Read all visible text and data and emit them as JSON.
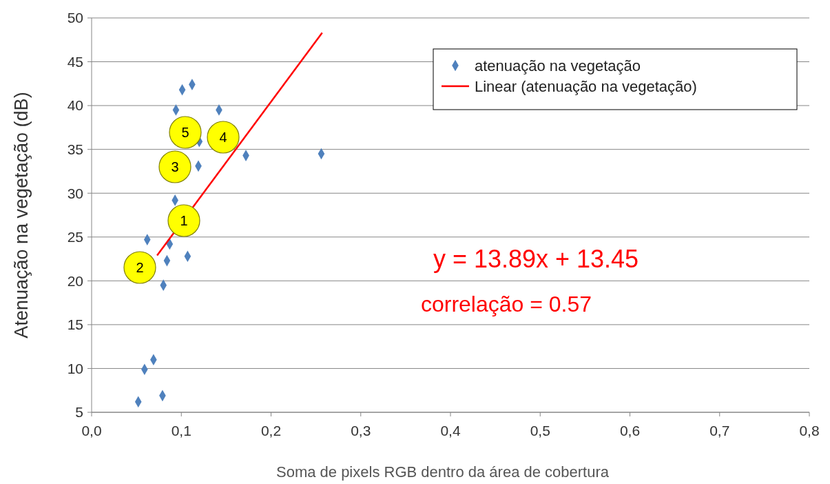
{
  "chart_data": {
    "type": "scatter",
    "xlabel": "Soma de pixels RGB dentro da área de cobertura",
    "ylabel": "Atenuação na vegetação (dB)",
    "xlim": [
      0,
      0.8
    ],
    "ylim": [
      5,
      50
    ],
    "xticks": [
      {
        "value": 0,
        "label": "0,0"
      },
      {
        "value": 0.1,
        "label": "0,1"
      },
      {
        "value": 0.2,
        "label": "0,2"
      },
      {
        "value": 0.3,
        "label": "0,3"
      },
      {
        "value": 0.4,
        "label": "0,4"
      },
      {
        "value": 0.5,
        "label": "0,5"
      },
      {
        "value": 0.6,
        "label": "0,6"
      },
      {
        "value": 0.7,
        "label": "0,7"
      },
      {
        "value": 0.8,
        "label": "0,8"
      }
    ],
    "yticks": [
      5,
      10,
      15,
      20,
      25,
      30,
      35,
      40,
      45,
      50
    ],
    "grid": "y",
    "legend": "top right",
    "marker": "diamond",
    "series": [
      {
        "name": "atenuação na vegetação",
        "color": "#4f81bd",
        "x": [
          0.052,
          0.079,
          0.059,
          0.069,
          0.08,
          0.084,
          0.107,
          0.087,
          0.062,
          0.093,
          0.119,
          0.172,
          0.256,
          0.12,
          0.094,
          0.142,
          0.101,
          0.112
        ],
        "values": [
          6.2,
          6.9,
          9.9,
          11.0,
          19.5,
          22.3,
          22.8,
          24.2,
          24.7,
          29.2,
          33.1,
          34.3,
          34.5,
          35.9,
          39.5,
          39.5,
          41.8,
          42.4
        ]
      },
      {
        "name": "Linear (atenuação na vegetação)",
        "type": "line",
        "color": "#ff0000",
        "line_style": "solid",
        "marker": "none",
        "x": [
          0.073,
          0.257
        ],
        "values": [
          22.9,
          48.3
        ]
      }
    ],
    "annotations": [
      "1",
      "2",
      "3",
      "4",
      "5",
      "y = 13.89x + 13.45",
      "correlação  = 0.57"
    ]
  }
}
